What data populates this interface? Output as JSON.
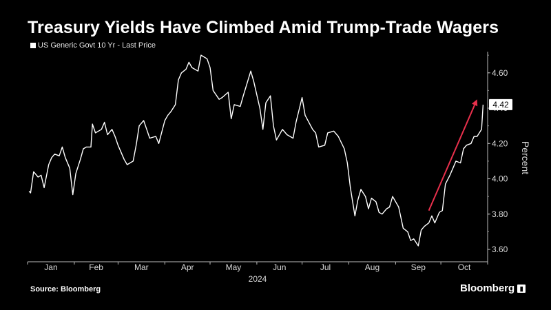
{
  "title": "Treasury Yields Have Climbed Amid Trump-Trade Wagers",
  "legend_label": "US Generic Govt 10 Yr - Last Price",
  "source": "Source: Bloomberg",
  "brand": "Bloomberg",
  "colors": {
    "line": "#ffffff",
    "arrow": "#e8304c",
    "background": "#000000"
  },
  "chart_data": {
    "type": "line",
    "ylabel": "Percent",
    "xlabel": "2024",
    "y_ticks": [
      "3.60",
      "3.80",
      "4.00",
      "4.20",
      "4.40",
      "4.60"
    ],
    "x_ticks": [
      "Jan",
      "Feb",
      "Mar",
      "Apr",
      "May",
      "Jun",
      "Jul",
      "Aug",
      "Sep",
      "Oct"
    ],
    "year_label": "2024",
    "last_value_label": "4.42",
    "ylim": [
      3.53,
      4.72
    ],
    "xlim": [
      "2024-01-01",
      "2024-11-01"
    ],
    "series": [
      {
        "name": "US Generic Govt 10 Yr - Last Price",
        "x": [
          "2024-01-02",
          "2024-01-03",
          "2024-01-05",
          "2024-01-08",
          "2024-01-10",
          "2024-01-12",
          "2024-01-15",
          "2024-01-17",
          "2024-01-19",
          "2024-01-22",
          "2024-01-24",
          "2024-01-26",
          "2024-01-29",
          "2024-01-31",
          "2024-02-02",
          "2024-02-05",
          "2024-02-07",
          "2024-02-09",
          "2024-02-12",
          "2024-02-13",
          "2024-02-15",
          "2024-02-19",
          "2024-02-21",
          "2024-02-23",
          "2024-02-26",
          "2024-02-28",
          "2024-03-01",
          "2024-03-05",
          "2024-03-07",
          "2024-03-11",
          "2024-03-13",
          "2024-03-15",
          "2024-03-18",
          "2024-03-20",
          "2024-03-22",
          "2024-03-26",
          "2024-03-28",
          "2024-04-01",
          "2024-04-03",
          "2024-04-05",
          "2024-04-08",
          "2024-04-10",
          "2024-04-12",
          "2024-04-15",
          "2024-04-17",
          "2024-04-19",
          "2024-04-23",
          "2024-04-25",
          "2024-04-29",
          "2024-05-01",
          "2024-05-03",
          "2024-05-07",
          "2024-05-09",
          "2024-05-13",
          "2024-05-15",
          "2024-05-17",
          "2024-05-21",
          "2024-05-23",
          "2024-05-28",
          "2024-05-30",
          "2024-06-03",
          "2024-06-05",
          "2024-06-07",
          "2024-06-10",
          "2024-06-12",
          "2024-06-14",
          "2024-06-18",
          "2024-06-21",
          "2024-06-25",
          "2024-06-27",
          "2024-07-01",
          "2024-07-03",
          "2024-07-08",
          "2024-07-10",
          "2024-07-12",
          "2024-07-16",
          "2024-07-18",
          "2024-07-22",
          "2024-07-25",
          "2024-07-29",
          "2024-07-31",
          "2024-08-02",
          "2024-08-05",
          "2024-08-07",
          "2024-08-09",
          "2024-08-12",
          "2024-08-14",
          "2024-08-16",
          "2024-08-19",
          "2024-08-21",
          "2024-08-23",
          "2024-08-26",
          "2024-08-28",
          "2024-08-30",
          "2024-09-03",
          "2024-09-06",
          "2024-09-09",
          "2024-09-11",
          "2024-09-13",
          "2024-09-16",
          "2024-09-18",
          "2024-09-20",
          "2024-09-23",
          "2024-09-25",
          "2024-09-27",
          "2024-09-30",
          "2024-10-02",
          "2024-10-04",
          "2024-10-07",
          "2024-10-09",
          "2024-10-11",
          "2024-10-14",
          "2024-10-16",
          "2024-10-18",
          "2024-10-21",
          "2024-10-23",
          "2024-10-25",
          "2024-10-28",
          "2024-10-29"
        ],
        "values": [
          3.93,
          3.92,
          4.04,
          4.01,
          4.02,
          3.95,
          4.08,
          4.12,
          4.14,
          4.13,
          4.18,
          4.12,
          4.06,
          3.91,
          4.03,
          4.11,
          4.17,
          4.18,
          4.18,
          4.31,
          4.26,
          4.28,
          4.32,
          4.25,
          4.28,
          4.24,
          4.19,
          4.11,
          4.08,
          4.1,
          4.19,
          4.3,
          4.33,
          4.28,
          4.23,
          4.24,
          4.2,
          4.33,
          4.36,
          4.38,
          4.42,
          4.56,
          4.6,
          4.62,
          4.66,
          4.63,
          4.61,
          4.7,
          4.68,
          4.63,
          4.5,
          4.45,
          4.46,
          4.49,
          4.34,
          4.42,
          4.41,
          4.47,
          4.61,
          4.55,
          4.4,
          4.28,
          4.43,
          4.47,
          4.3,
          4.22,
          4.28,
          4.25,
          4.23,
          4.32,
          4.46,
          4.36,
          4.28,
          4.26,
          4.18,
          4.19,
          4.26,
          4.27,
          4.24,
          4.17,
          4.09,
          3.95,
          3.79,
          3.88,
          3.94,
          3.9,
          3.83,
          3.89,
          3.87,
          3.81,
          3.8,
          3.83,
          3.84,
          3.9,
          3.84,
          3.72,
          3.7,
          3.65,
          3.66,
          3.62,
          3.71,
          3.73,
          3.75,
          3.79,
          3.75,
          3.81,
          3.82,
          3.97,
          4.02,
          4.06,
          4.1,
          4.09,
          4.17,
          4.19,
          4.2,
          4.24,
          4.24,
          4.28,
          4.42
        ]
      }
    ],
    "annotation": {
      "type": "arrow",
      "from": {
        "x": "2024-09-23",
        "y": 3.82
      },
      "to": {
        "x": "2024-10-25",
        "y": 4.45
      }
    }
  }
}
